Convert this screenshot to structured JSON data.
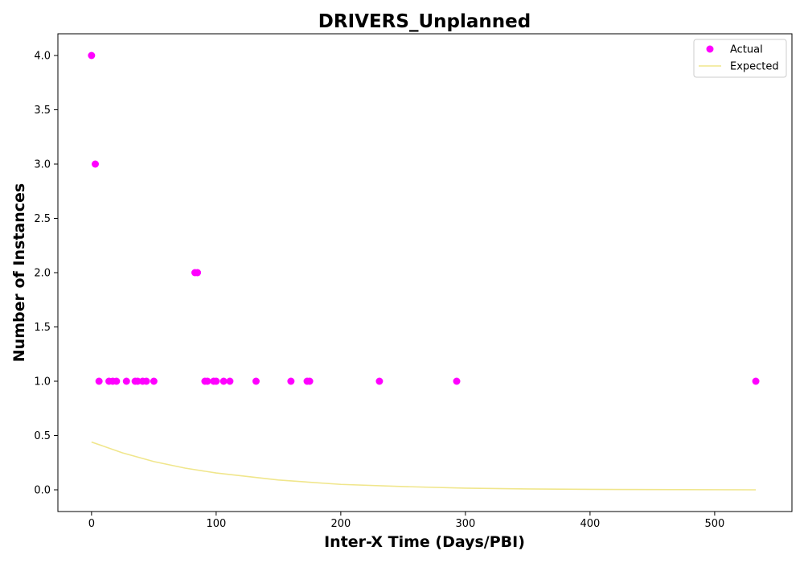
{
  "chart_data": {
    "type": "scatter",
    "title": "DRIVERS_Unplanned",
    "xlabel": "Inter-X Time (Days/PBI)",
    "ylabel": "Number of Instances",
    "xlim": [
      -27,
      562
    ],
    "ylim": [
      -0.2,
      4.2
    ],
    "xticks": [
      0,
      100,
      200,
      300,
      400,
      500
    ],
    "yticks": [
      0.0,
      0.5,
      1.0,
      1.5,
      2.0,
      2.5,
      3.0,
      3.5,
      4.0
    ],
    "grid": false,
    "legend_position": "top-right",
    "series": [
      {
        "name": "Actual",
        "kind": "scatter",
        "color": "#ff00ff",
        "points": [
          [
            0,
            4
          ],
          [
            3,
            3
          ],
          [
            6,
            1
          ],
          [
            14,
            1
          ],
          [
            17,
            1
          ],
          [
            20,
            1
          ],
          [
            28,
            1
          ],
          [
            35,
            1
          ],
          [
            37,
            1
          ],
          [
            41,
            1
          ],
          [
            44,
            1
          ],
          [
            50,
            1
          ],
          [
            83,
            2
          ],
          [
            85,
            2
          ],
          [
            91,
            1
          ],
          [
            93,
            1
          ],
          [
            98,
            1
          ],
          [
            100,
            1
          ],
          [
            106,
            1
          ],
          [
            111,
            1
          ],
          [
            132,
            1
          ],
          [
            160,
            1
          ],
          [
            173,
            1
          ],
          [
            175,
            1
          ],
          [
            231,
            1
          ],
          [
            293,
            1
          ],
          [
            533,
            1
          ]
        ]
      },
      {
        "name": "Expected",
        "kind": "line",
        "color": "#f0e68c",
        "points": [
          [
            0,
            0.44
          ],
          [
            25,
            0.34
          ],
          [
            50,
            0.26
          ],
          [
            75,
            0.2
          ],
          [
            100,
            0.155
          ],
          [
            150,
            0.09
          ],
          [
            200,
            0.05
          ],
          [
            250,
            0.03
          ],
          [
            300,
            0.015
          ],
          [
            350,
            0.008
          ],
          [
            400,
            0.004
          ],
          [
            450,
            0.002
          ],
          [
            500,
            0.001
          ],
          [
            533,
            0.0
          ]
        ]
      }
    ]
  }
}
